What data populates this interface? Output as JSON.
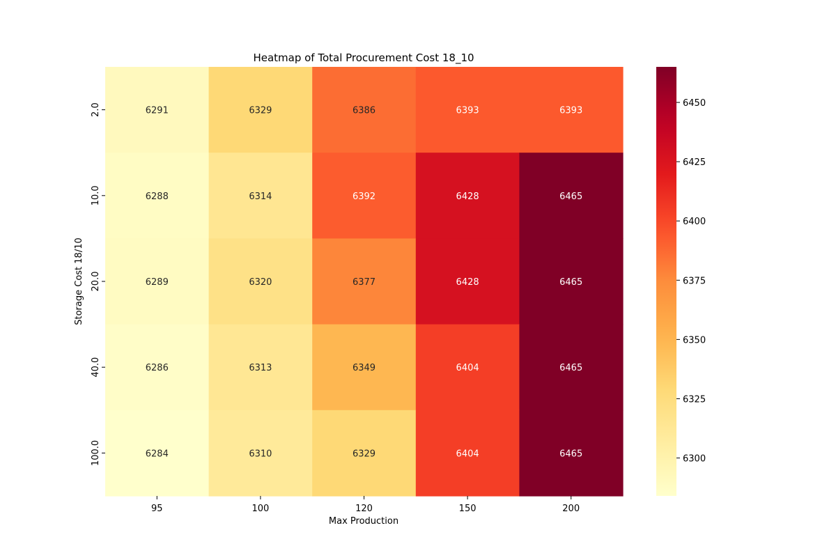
{
  "chart_data": {
    "type": "heatmap",
    "title": "Heatmap of Total Procurement Cost 18_10",
    "xlabel": "Max Production",
    "ylabel": "Storage Cost 18/10",
    "x_categories": [
      "95",
      "100",
      "120",
      "150",
      "200"
    ],
    "y_categories": [
      "2.0",
      "10.0",
      "20.0",
      "40.0",
      "100.0"
    ],
    "values": [
      [
        6291,
        6329,
        6386,
        6393,
        6393
      ],
      [
        6288,
        6314,
        6392,
        6428,
        6465
      ],
      [
        6289,
        6320,
        6377,
        6428,
        6465
      ],
      [
        6286,
        6313,
        6349,
        6404,
        6465
      ],
      [
        6284,
        6310,
        6329,
        6404,
        6465
      ]
    ],
    "colormap": "YlOrRd",
    "colorbar": {
      "vmin": 6284,
      "vmax": 6465,
      "ticks": [
        6300,
        6325,
        6350,
        6375,
        6400,
        6425,
        6450
      ]
    },
    "grid": false,
    "colors": {
      "dark_text": "#262626",
      "light_text": "#ffffff"
    }
  }
}
